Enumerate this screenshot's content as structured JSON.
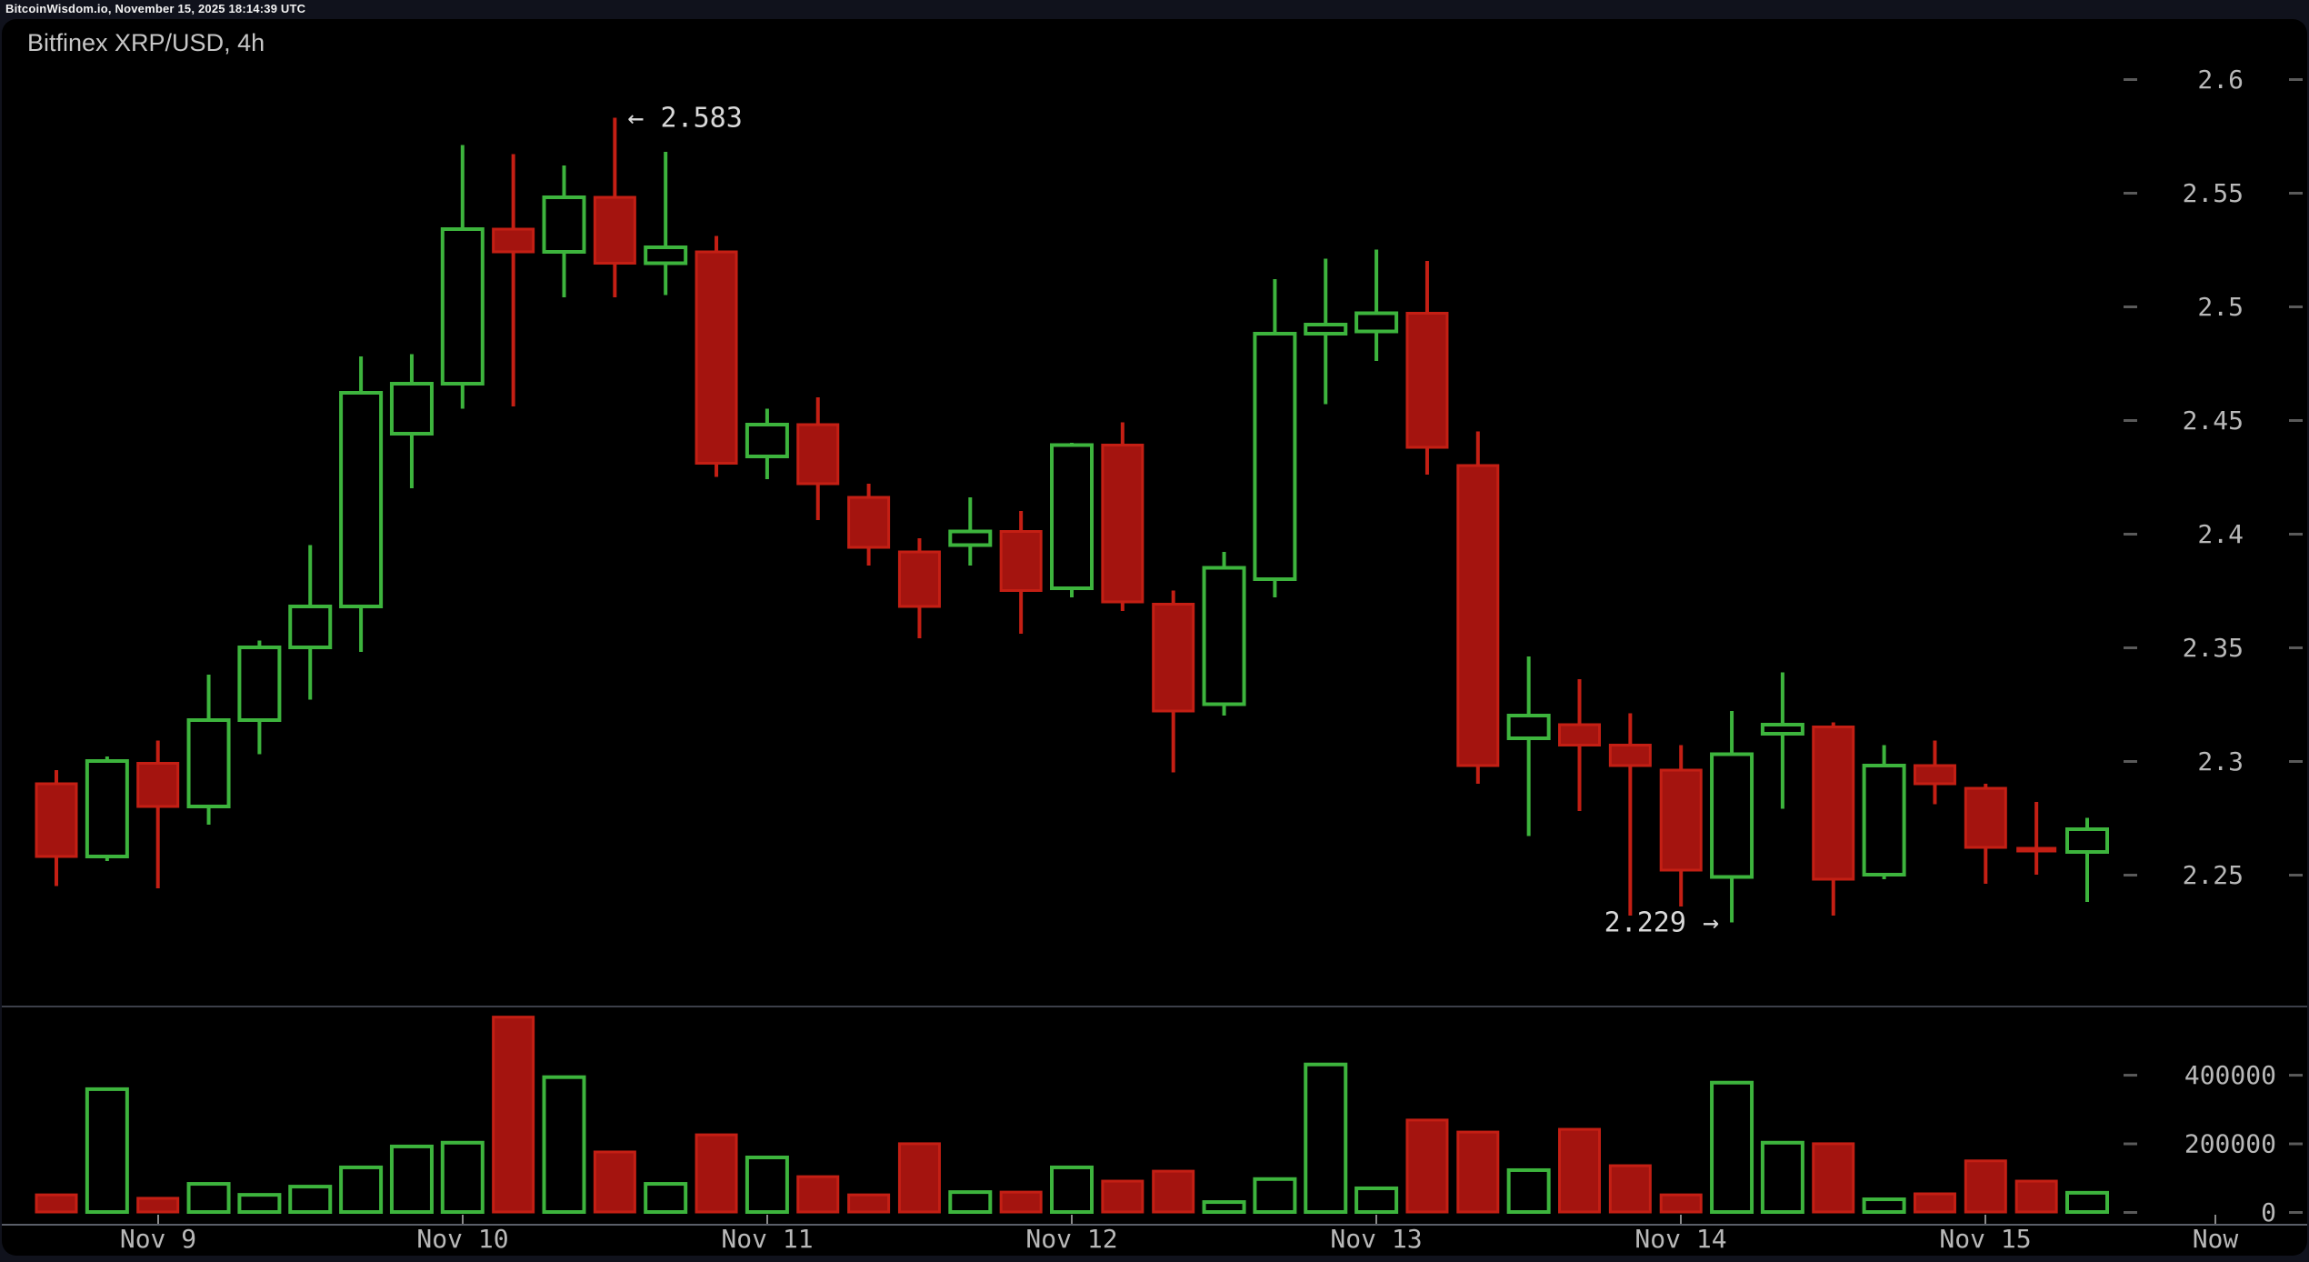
{
  "top_bar": {
    "text": "BitcoinWisdom.io, November 15, 2025 18:14:39 UTC"
  },
  "chart": {
    "title": "Bitfinex XRP/USD, 4h"
  },
  "annotations": {
    "high_label": "← 2.583",
    "low_label": "2.229 →",
    "high_price": 2.583,
    "low_price": 2.229,
    "high_candle_index": 11,
    "low_candle_index": 33
  },
  "axes": {
    "price_tick_labels": [
      "2.6",
      "2.55",
      "2.5",
      "2.45",
      "2.4",
      "2.35",
      "2.3",
      "2.25"
    ],
    "price_tick_values": [
      2.6,
      2.55,
      2.5,
      2.45,
      2.4,
      2.35,
      2.3,
      2.25
    ],
    "volume_tick_labels": [
      "400000",
      "200000",
      "0"
    ],
    "volume_tick_values": [
      400000,
      200000,
      0
    ],
    "date_labels": [
      "Nov 9",
      "Nov 10",
      "Nov 11",
      "Nov 12",
      "Nov 13",
      "Nov 14",
      "Nov 15",
      "Now"
    ]
  },
  "colors": {
    "up_green": "#3db43d",
    "down_fill": "#a4140f",
    "down_stroke": "#c41f14",
    "chart_background": "#000000",
    "page_background": "#10121c",
    "axis_text": "#b8b8b8",
    "annotation_text": "#d9d9d9",
    "title_text": "#c6c6c6",
    "divider_line": "#3c3f49",
    "axis_line": "#5a5e68",
    "tick_dash": "#5a5a5a"
  },
  "chart_data": {
    "type": "candlestick",
    "title": "Bitfinex XRP/USD, 4h",
    "exchange": "Bitfinex",
    "pair": "XRP/USD",
    "interval": "4h",
    "legend_position": "none",
    "grid": false,
    "price_axis_range": [
      2.225,
      2.615
    ],
    "volume_axis_range": [
      0,
      650000
    ],
    "annotated_high": 2.583,
    "annotated_low": 2.229,
    "x_dates": [
      "Nov 9",
      "Nov 10",
      "Nov 11",
      "Nov 12",
      "Nov 13",
      "Nov 14",
      "Nov 15"
    ],
    "candles_note": "each candle = [open, high, low, close, volume], 4h bars from Nov 8 16:00 to Nov 15 08:00",
    "candles": [
      [
        2.29,
        2.296,
        2.245,
        2.258,
        50000
      ],
      [
        2.258,
        2.302,
        2.256,
        2.3,
        358000
      ],
      [
        2.299,
        2.309,
        2.244,
        2.28,
        40000
      ],
      [
        2.28,
        2.338,
        2.272,
        2.318,
        82000
      ],
      [
        2.318,
        2.353,
        2.303,
        2.35,
        50000
      ],
      [
        2.35,
        2.395,
        2.327,
        2.368,
        74000
      ],
      [
        2.368,
        2.478,
        2.348,
        2.462,
        130000
      ],
      [
        2.444,
        2.479,
        2.42,
        2.466,
        191000
      ],
      [
        2.466,
        2.571,
        2.455,
        2.534,
        202000
      ],
      [
        2.534,
        2.567,
        2.456,
        2.524,
        568000
      ],
      [
        2.524,
        2.562,
        2.504,
        2.548,
        393000
      ],
      [
        2.548,
        2.583,
        2.504,
        2.519,
        175000
      ],
      [
        2.519,
        2.568,
        2.505,
        2.526,
        82000
      ],
      [
        2.524,
        2.531,
        2.425,
        2.431,
        225000
      ],
      [
        2.434,
        2.455,
        2.424,
        2.448,
        159000
      ],
      [
        2.448,
        2.46,
        2.406,
        2.422,
        103000
      ],
      [
        2.416,
        2.422,
        2.386,
        2.394,
        50000
      ],
      [
        2.392,
        2.398,
        2.354,
        2.368,
        199000
      ],
      [
        2.395,
        2.416,
        2.386,
        2.401,
        58000
      ],
      [
        2.401,
        2.41,
        2.356,
        2.375,
        58000
      ],
      [
        2.376,
        2.44,
        2.372,
        2.439,
        130000
      ],
      [
        2.439,
        2.449,
        2.366,
        2.37,
        90000
      ],
      [
        2.369,
        2.375,
        2.295,
        2.322,
        119000
      ],
      [
        2.325,
        2.392,
        2.32,
        2.385,
        29000
      ],
      [
        2.38,
        2.512,
        2.372,
        2.488,
        96000
      ],
      [
        2.488,
        2.521,
        2.457,
        2.492,
        430000
      ],
      [
        2.489,
        2.525,
        2.476,
        2.497,
        69000
      ],
      [
        2.497,
        2.52,
        2.426,
        2.438,
        268000
      ],
      [
        2.43,
        2.445,
        2.29,
        2.298,
        233000
      ],
      [
        2.31,
        2.346,
        2.267,
        2.32,
        122000
      ],
      [
        2.316,
        2.336,
        2.278,
        2.307,
        241000
      ],
      [
        2.307,
        2.321,
        2.232,
        2.298,
        135000
      ],
      [
        2.296,
        2.307,
        2.236,
        2.252,
        50000
      ],
      [
        2.249,
        2.322,
        2.229,
        2.303,
        377000
      ],
      [
        2.312,
        2.339,
        2.279,
        2.316,
        202000
      ],
      [
        2.315,
        2.317,
        2.232,
        2.248,
        199000
      ],
      [
        2.25,
        2.307,
        2.248,
        2.298,
        37000
      ],
      [
        2.298,
        2.309,
        2.281,
        2.29,
        53000
      ],
      [
        2.288,
        2.29,
        2.246,
        2.262,
        149000
      ],
      [
        2.262,
        2.282,
        2.25,
        2.26,
        90000
      ],
      [
        2.26,
        2.275,
        2.238,
        2.27,
        56000
      ]
    ]
  }
}
